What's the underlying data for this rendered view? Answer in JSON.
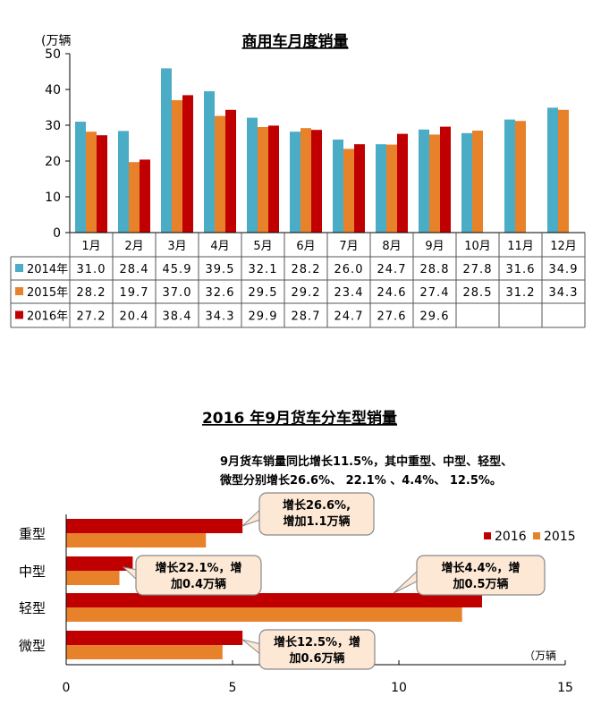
{
  "chart_data": [
    {
      "type": "bar",
      "title": "商用车月度销量",
      "ylabel": "(万辆",
      "ylim": [
        0,
        50
      ],
      "yticks": [
        0,
        10,
        20,
        30,
        40,
        50
      ],
      "grid": false,
      "legend": "table-left",
      "categories": [
        "1月",
        "2月",
        "3月",
        "4月",
        "5月",
        "6月",
        "7月",
        "8月",
        "9月",
        "10月",
        "11月",
        "12月"
      ],
      "series": [
        {
          "name": "2014年",
          "color": "#4BACC6",
          "values": [
            31.0,
            28.4,
            45.9,
            39.5,
            32.1,
            28.2,
            26.0,
            24.7,
            28.8,
            27.8,
            31.6,
            34.9
          ],
          "labels": [
            "31.0",
            "28.4",
            "45.9",
            "39.5",
            "32.1",
            "28.2",
            "26.0",
            "24.7",
            "28.8",
            "27.8",
            "31.6",
            "34.9"
          ]
        },
        {
          "name": "2015年",
          "color": "#E8822A",
          "values": [
            28.2,
            19.7,
            37.0,
            32.6,
            29.5,
            29.2,
            23.4,
            24.6,
            27.4,
            28.5,
            31.2,
            34.3
          ],
          "labels": [
            "28.2",
            "19.7",
            "37.0",
            "32.6",
            "29.5",
            "29.2",
            "23.4",
            "24.6",
            "27.4",
            "28.5",
            "31.2",
            "34.3"
          ]
        },
        {
          "name": "2016年",
          "color": "#C00000",
          "values": [
            27.2,
            20.4,
            38.4,
            34.3,
            29.9,
            28.7,
            24.7,
            27.6,
            29.6,
            null,
            null,
            null
          ],
          "labels": [
            "27.2",
            "20.4",
            "38.4",
            "34.3",
            "29.9",
            "28.7",
            "24.7",
            "27.6",
            "29.6",
            "",
            "",
            ""
          ]
        }
      ]
    },
    {
      "type": "bar",
      "orientation": "horizontal",
      "title": "2016 年9月货车分车型销量",
      "subtitle_lines": [
        "9月货车销量同比增长11.5%，其中重型、中型、轻型、",
        "微型分别增长26.6%、 22.1% 、4.4%、 12.5%。"
      ],
      "unit_label": "（万辆",
      "xlim": [
        0,
        15
      ],
      "xticks": [
        0,
        5,
        10,
        15
      ],
      "legend": "top-right",
      "categories": [
        "重型",
        "中型",
        "轻型",
        "微型"
      ],
      "series": [
        {
          "name": "2016",
          "color": "#C00000",
          "values": [
            5.3,
            2.0,
            12.5,
            5.3
          ]
        },
        {
          "name": "2015",
          "color": "#E8822A",
          "values": [
            4.2,
            1.6,
            11.9,
            4.7
          ]
        }
      ],
      "callouts": [
        {
          "category": "重型",
          "lines": [
            "增长26.6%,",
            "增加1.1万辆"
          ]
        },
        {
          "category": "中型",
          "lines": [
            "增长22.1%，增",
            "加0.4万辆"
          ]
        },
        {
          "category": "轻型",
          "lines": [
            "增长4.4%，增",
            "加0.5万辆"
          ]
        },
        {
          "category": "微型",
          "lines": [
            "增长12.5%，增",
            "加0.6万辆"
          ]
        }
      ]
    }
  ]
}
